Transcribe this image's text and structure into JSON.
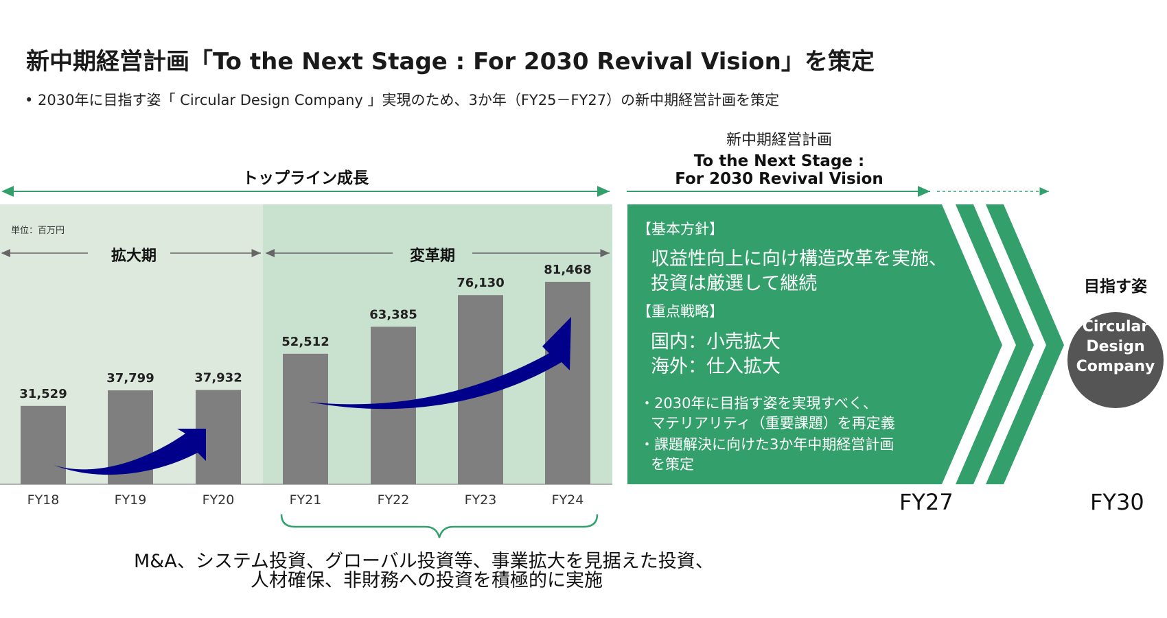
{
  "header": {
    "title": "新中期経営計画「To the Next Stage : For 2030 Revival Vision」を策定",
    "subtitle": "• 2030年に目指す姿「 Circular Design Company 」実現のため、3か年（FY25－FY27）の新中期経営計画を策定"
  },
  "plan": {
    "label": "新中期経営計画",
    "name_line1": "To the Next Stage :",
    "name_line2": "For 2030 Revival Vision"
  },
  "topline_label": "トップライン成長",
  "unit": "単位：百万円",
  "periods": {
    "expansion": "拡大期",
    "reform": "変革期"
  },
  "chart_data": {
    "type": "bar",
    "categories": [
      "FY18",
      "FY19",
      "FY20",
      "FY21",
      "FY22",
      "FY23",
      "FY24"
    ],
    "values": [
      31529,
      37799,
      37932,
      52512,
      63385,
      76130,
      81468
    ],
    "value_labels": [
      "31,529",
      "37,799",
      "37,932",
      "52,512",
      "63,385",
      "76,130",
      "81,468"
    ],
    "ylim": [
      0,
      90000
    ]
  },
  "panel": {
    "heading1": "【基本方針】",
    "body1_line1": "収益性向上に向け構造改革を実施、",
    "body1_line2": "投資は厳選して継続",
    "heading2": "【重点戦略】",
    "body2_line1": "国内：小売拡大",
    "body2_line2": "海外：仕入拡大",
    "note1_line1": "・2030年に目指す姿を実現すべく、",
    "note1_line2": "マテリアリティ（重要課題）を再定義",
    "note2_line1": "・課題解決に向けた3か年中期経営計画",
    "note2_line2": "を策定"
  },
  "fy27": "FY27",
  "fy30": "FY30",
  "goal": {
    "label": "目指す姿",
    "line1": "Circular",
    "line2": "Design",
    "line3": "Company"
  },
  "footnote": {
    "line1": "M&A、システム投資、グローバル投資等、事業拡大を見据えた投資、",
    "line2": "人材確保、非財務への投資を積極的に実施"
  },
  "colors": {
    "green": "#33a06b",
    "bg_light": "#dde9dd",
    "bg_mid": "#c9e2cf",
    "bar": "#7f7f7f",
    "arrow": "#00008b",
    "circle": "#555555"
  }
}
